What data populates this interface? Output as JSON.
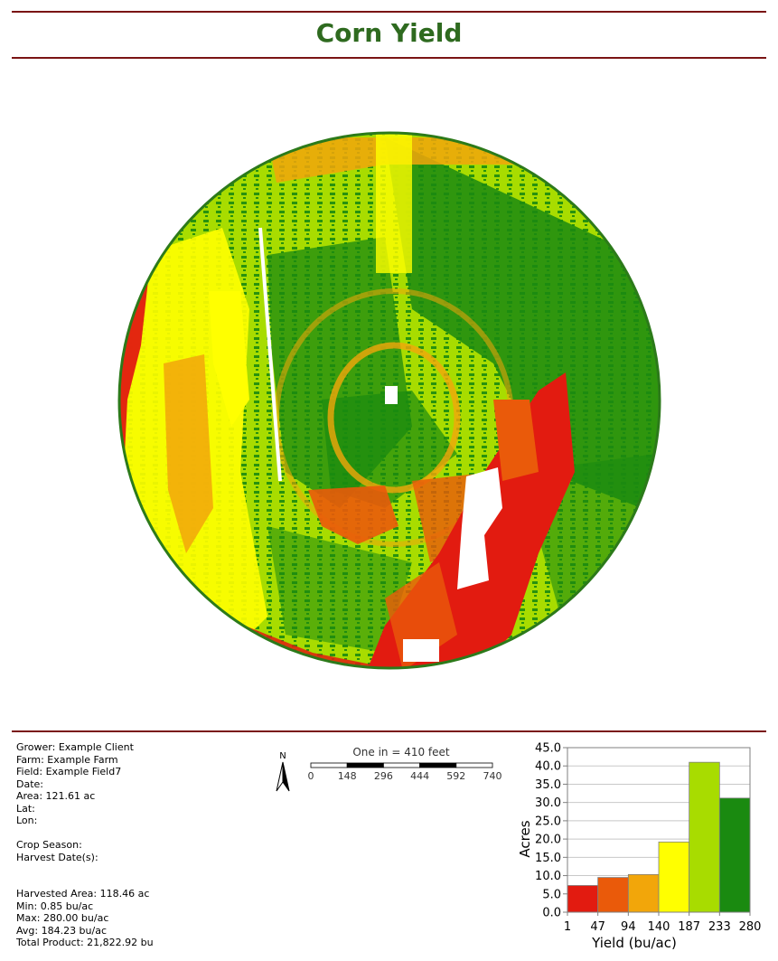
{
  "title": "Corn Yield",
  "info": {
    "grower": "Grower: Example Client",
    "farm": "Farm: Example Farm",
    "field": "Field: Example Field7",
    "date": "Date:",
    "area": "Area: 121.61 ac",
    "lat": "Lat:",
    "lon": "Lon:",
    "crop_season": "Crop Season:",
    "harvest_dates": "Harvest Date(s):",
    "harvested_area": "Harvested Area: 118.46 ac",
    "min": "Min: 0.85 bu/ac",
    "max": "Max: 280.00 bu/ac",
    "avg": "Avg: 184.23 bu/ac",
    "total_product": "Total Product: 21,822.92 bu"
  },
  "scale_bar": {
    "north_label": "N",
    "caption": "One in = 410 feet",
    "ticks": [
      "0",
      "148",
      "296",
      "444",
      "592",
      "740"
    ]
  },
  "colors": {
    "rule": "#7a1414",
    "title": "#2e6a1f",
    "field_outline": "#2c7a1a",
    "class_1": "#e21b10",
    "class_2": "#ea5a0a",
    "class_3": "#f2a60a",
    "class_4": "#ffff00",
    "class_5": "#a8dc00",
    "class_6": "#1a8a10"
  },
  "chart_data": {
    "type": "bar",
    "title": "",
    "xlabel": "Yield (bu/ac)",
    "ylabel": "Acres",
    "x_ticks": [
      "1",
      "47",
      "94",
      "140",
      "187",
      "233",
      "280"
    ],
    "y_ticks": [
      "0.0",
      "5.0",
      "10.0",
      "15.0",
      "20.0",
      "25.0",
      "30.0",
      "35.0",
      "40.0",
      "45.0"
    ],
    "ylim": [
      0,
      45
    ],
    "grid": true,
    "bins": [
      {
        "from": 1,
        "to": 47,
        "value": 7.3,
        "color": "#e21b10"
      },
      {
        "from": 47,
        "to": 94,
        "value": 9.5,
        "color": "#ea5a0a"
      },
      {
        "from": 94,
        "to": 140,
        "value": 10.3,
        "color": "#f2a60a"
      },
      {
        "from": 140,
        "to": 187,
        "value": 19.2,
        "color": "#ffff00"
      },
      {
        "from": 187,
        "to": 233,
        "value": 41.0,
        "color": "#a8dc00"
      },
      {
        "from": 233,
        "to": 280,
        "value": 31.2,
        "color": "#1a8a10"
      }
    ]
  }
}
